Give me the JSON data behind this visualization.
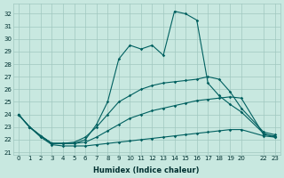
{
  "xlabel": "Humidex (Indice chaleur)",
  "background_color": "#c8e8e0",
  "grid_color": "#a0c8c0",
  "line_color": "#006060",
  "x_ticks": [
    0,
    1,
    2,
    3,
    4,
    5,
    6,
    7,
    8,
    9,
    10,
    11,
    12,
    13,
    14,
    15,
    16,
    17,
    18,
    19,
    20,
    22,
    23
  ],
  "x_tick_labels": [
    "0",
    "1",
    "2",
    "3",
    "4",
    "5",
    "6",
    "7",
    "8",
    "9",
    "10",
    "11",
    "12",
    "13",
    "14",
    "15",
    "16",
    "17",
    "18",
    "19",
    "20",
    "22",
    "23"
  ],
  "yticks": [
    21,
    22,
    23,
    24,
    25,
    26,
    27,
    28,
    29,
    30,
    31,
    32
  ],
  "ylim": [
    20.8,
    32.8
  ],
  "xlim": [
    -0.5,
    23.5
  ],
  "series1_x": [
    0,
    1,
    2,
    3,
    4,
    5,
    6,
    7,
    8,
    9,
    10,
    11,
    12,
    13,
    14,
    15,
    16,
    17,
    18,
    19,
    20,
    22,
    23
  ],
  "series1_y": [
    24,
    23,
    22.2,
    21.6,
    21.5,
    21.5,
    21.5,
    21.6,
    21.7,
    21.8,
    21.9,
    22.0,
    22.1,
    22.2,
    22.3,
    22.4,
    22.5,
    22.6,
    22.7,
    22.8,
    22.8,
    22.3,
    22.2
  ],
  "series2_x": [
    0,
    1,
    2,
    3,
    4,
    5,
    6,
    7,
    8,
    9,
    10,
    11,
    12,
    13,
    14,
    15,
    16,
    17,
    18,
    19,
    20,
    22,
    23
  ],
  "series2_y": [
    24,
    23,
    22.3,
    21.7,
    21.7,
    21.7,
    21.8,
    22.2,
    22.7,
    23.2,
    23.7,
    24.0,
    24.3,
    24.5,
    24.7,
    24.9,
    25.1,
    25.2,
    25.3,
    25.4,
    25.3,
    22.4,
    22.3
  ],
  "series3_x": [
    0,
    1,
    2,
    3,
    4,
    5,
    6,
    7,
    8,
    9,
    10,
    11,
    12,
    13,
    14,
    15,
    16,
    17,
    18,
    19,
    20,
    22,
    23
  ],
  "series3_y": [
    24,
    23,
    22.3,
    21.7,
    21.7,
    21.8,
    22.2,
    23.0,
    24.0,
    25.0,
    25.5,
    26.0,
    26.3,
    26.5,
    26.6,
    26.7,
    26.8,
    27.0,
    26.8,
    25.8,
    24.5,
    22.6,
    22.4
  ],
  "series4_x": [
    0,
    1,
    2,
    3,
    4,
    5,
    6,
    7,
    8,
    9,
    10,
    11,
    12,
    13,
    14,
    15,
    16,
    17,
    18,
    19,
    20,
    22,
    23
  ],
  "series4_y": [
    24,
    23,
    22.3,
    21.7,
    21.7,
    21.7,
    22.0,
    23.2,
    25.0,
    28.4,
    29.5,
    29.2,
    29.5,
    28.7,
    32.2,
    32.0,
    31.5,
    26.5,
    25.5,
    24.8,
    24.2,
    22.5,
    22.2
  ]
}
